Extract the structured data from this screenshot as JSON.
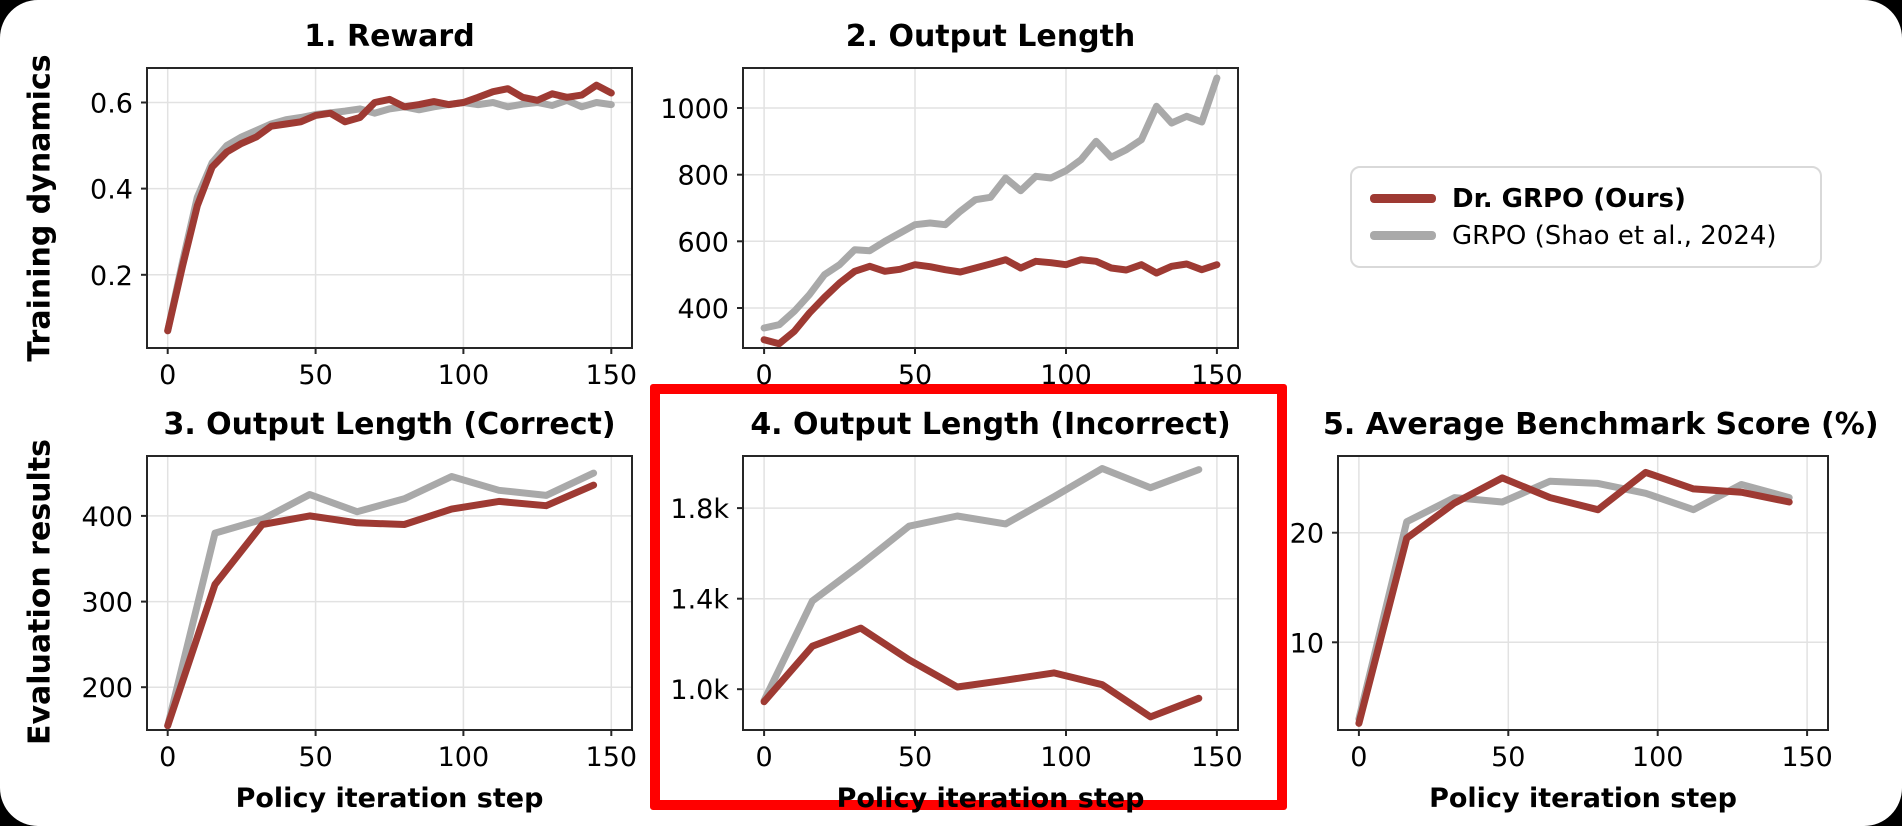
{
  "figure": {
    "row_labels": [
      {
        "label": "Training dynamics"
      },
      {
        "label": "Evaluation results"
      }
    ],
    "legend": {
      "items": [
        {
          "label": "Dr. GRPO (Ours)",
          "color": "#9e3a33",
          "bold": true
        },
        {
          "label": "GRPO (Shao et al., 2024)",
          "color": "#a9a9a9",
          "bold": false
        }
      ]
    },
    "highlight_color": "#ff0000",
    "colors": {
      "ours": "#9e3a33",
      "baseline": "#a9a9a9",
      "grid": "#e2e2e2",
      "spine": "#262626"
    }
  },
  "chart_data": [
    {
      "type": "line",
      "title": "1. Reward",
      "xlabel": "",
      "x": [
        0,
        5,
        10,
        15,
        20,
        25,
        30,
        35,
        40,
        45,
        50,
        55,
        60,
        65,
        70,
        75,
        80,
        85,
        90,
        95,
        100,
        105,
        110,
        115,
        120,
        125,
        130,
        135,
        140,
        145,
        150
      ],
      "xlim": [
        -7,
        157
      ],
      "ylim": [
        0.03,
        0.68
      ],
      "xticks": [
        0,
        50,
        100,
        150
      ],
      "xtick_labels": [
        "0",
        "50",
        "100",
        "150"
      ],
      "yticks": [
        0.2,
        0.4,
        0.6
      ],
      "ytick_labels": [
        "0.2",
        "0.4",
        "0.6"
      ],
      "grid": true,
      "highlighted": false,
      "series": [
        {
          "name": "GRPO (Shao et al., 2024)",
          "color": "#a9a9a9",
          "values": [
            0.07,
            0.23,
            0.38,
            0.46,
            0.5,
            0.52,
            0.535,
            0.55,
            0.56,
            0.565,
            0.572,
            0.576,
            0.58,
            0.585,
            0.575,
            0.585,
            0.59,
            0.583,
            0.59,
            0.595,
            0.6,
            0.595,
            0.6,
            0.59,
            0.596,
            0.6,
            0.593,
            0.605,
            0.59,
            0.6,
            0.595
          ]
        },
        {
          "name": "Dr. GRPO (Ours)",
          "color": "#9e3a33",
          "values": [
            0.07,
            0.22,
            0.36,
            0.45,
            0.485,
            0.505,
            0.52,
            0.545,
            0.55,
            0.555,
            0.57,
            0.575,
            0.555,
            0.565,
            0.6,
            0.607,
            0.59,
            0.595,
            0.602,
            0.595,
            0.6,
            0.612,
            0.625,
            0.632,
            0.612,
            0.605,
            0.62,
            0.612,
            0.617,
            0.64,
            0.622
          ]
        }
      ]
    },
    {
      "type": "line",
      "title": "2. Output Length",
      "xlabel": "",
      "x": [
        0,
        5,
        10,
        15,
        20,
        25,
        30,
        35,
        40,
        45,
        50,
        55,
        60,
        65,
        70,
        75,
        80,
        85,
        90,
        95,
        100,
        105,
        110,
        115,
        120,
        125,
        130,
        135,
        140,
        145,
        150
      ],
      "xlim": [
        -7,
        157
      ],
      "ylim": [
        280,
        1120
      ],
      "xticks": [
        0,
        50,
        100,
        150
      ],
      "xtick_labels": [
        "0",
        "50",
        "100",
        "150"
      ],
      "yticks": [
        400,
        600,
        800,
        1000
      ],
      "ytick_labels": [
        "400",
        "600",
        "800",
        "1000"
      ],
      "grid": true,
      "highlighted": false,
      "series": [
        {
          "name": "GRPO (Shao et al., 2024)",
          "color": "#a9a9a9",
          "values": [
            340,
            350,
            390,
            440,
            500,
            530,
            575,
            572,
            600,
            625,
            650,
            655,
            650,
            690,
            725,
            732,
            790,
            752,
            795,
            790,
            812,
            845,
            900,
            852,
            875,
            905,
            1005,
            955,
            975,
            958,
            1090
          ]
        },
        {
          "name": "Dr. GRPO (Ours)",
          "color": "#9e3a33",
          "values": [
            305,
            293,
            330,
            385,
            432,
            475,
            510,
            525,
            510,
            516,
            530,
            524,
            515,
            508,
            520,
            532,
            545,
            520,
            540,
            536,
            530,
            545,
            540,
            520,
            514,
            530,
            505,
            525,
            532,
            515,
            530
          ]
        }
      ]
    },
    {
      "type": "line",
      "title": "3. Output Length (Correct)",
      "xlabel": "Policy iteration step",
      "x": [
        0,
        16,
        32,
        48,
        64,
        80,
        96,
        112,
        128,
        144
      ],
      "xlim": [
        -7,
        157
      ],
      "ylim": [
        150,
        470
      ],
      "xticks": [
        0,
        50,
        100,
        150
      ],
      "xtick_labels": [
        "0",
        "50",
        "100",
        "150"
      ],
      "yticks": [
        200,
        300,
        400
      ],
      "ytick_labels": [
        "200",
        "300",
        "400"
      ],
      "grid": true,
      "highlighted": false,
      "series": [
        {
          "name": "GRPO (Shao et al., 2024)",
          "color": "#a9a9a9",
          "values": [
            155,
            380,
            396,
            425,
            405,
            420,
            446,
            430,
            424,
            450
          ]
        },
        {
          "name": "Dr. GRPO (Ours)",
          "color": "#9e3a33",
          "values": [
            155,
            320,
            390,
            400,
            392,
            390,
            408,
            417,
            412,
            436
          ]
        }
      ]
    },
    {
      "type": "line",
      "title": "4. Output Length (Incorrect)",
      "xlabel": "Policy iteration step",
      "x": [
        0,
        16,
        32,
        48,
        64,
        80,
        96,
        112,
        128,
        144
      ],
      "xlim": [
        -7,
        157
      ],
      "ylim": [
        820,
        2030
      ],
      "xticks": [
        0,
        50,
        100,
        150
      ],
      "xtick_labels": [
        "0",
        "50",
        "100",
        "150"
      ],
      "yticks": [
        1000,
        1400,
        1800
      ],
      "ytick_labels": [
        "1.0k",
        "1.4k",
        "1.8k"
      ],
      "grid": true,
      "highlighted": true,
      "series": [
        {
          "name": "GRPO (Shao et al., 2024)",
          "color": "#a9a9a9",
          "values": [
            950,
            1390,
            1550,
            1720,
            1765,
            1730,
            1850,
            1975,
            1890,
            1970
          ]
        },
        {
          "name": "Dr. GRPO (Ours)",
          "color": "#9e3a33",
          "values": [
            945,
            1190,
            1270,
            1130,
            1010,
            1040,
            1072,
            1020,
            878,
            960
          ]
        }
      ]
    },
    {
      "type": "line",
      "title": "5. Average Benchmark Score (%)",
      "xlabel": "Policy iteration step",
      "x": [
        0,
        16,
        32,
        48,
        64,
        80,
        96,
        112,
        128,
        144
      ],
      "xlim": [
        -7,
        157
      ],
      "ylim": [
        2,
        27
      ],
      "xticks": [
        0,
        50,
        100,
        150
      ],
      "xtick_labels": [
        "0",
        "50",
        "100",
        "150"
      ],
      "yticks": [
        10,
        20
      ],
      "ytick_labels": [
        "10",
        "20"
      ],
      "grid": true,
      "highlighted": false,
      "series": [
        {
          "name": "GRPO (Shao et al., 2024)",
          "color": "#a9a9a9",
          "values": [
            3.0,
            21.0,
            23.2,
            22.8,
            24.7,
            24.5,
            23.6,
            22.1,
            24.4,
            23.2
          ]
        },
        {
          "name": "Dr. GRPO (Ours)",
          "color": "#9e3a33",
          "values": [
            2.6,
            19.5,
            22.7,
            25.0,
            23.2,
            22.1,
            25.5,
            24.0,
            23.7,
            22.8
          ]
        }
      ]
    }
  ]
}
